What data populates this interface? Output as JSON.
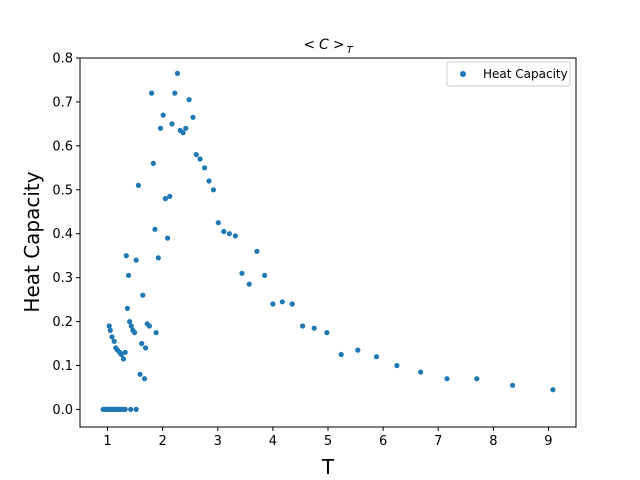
{
  "chart_data": {
    "type": "scatter",
    "title": "<C>_T",
    "xlabel": "T",
    "ylabel": "Heat Capacity",
    "xlim": [
      0.5,
      9.5
    ],
    "ylim": [
      -0.04,
      0.8
    ],
    "xticks": [
      1,
      2,
      3,
      4,
      5,
      6,
      7,
      8,
      9
    ],
    "yticks": [
      0.0,
      0.1,
      0.2,
      0.3,
      0.4,
      0.5,
      0.6,
      0.7,
      0.8
    ],
    "grid": false,
    "legend_position": "top-right",
    "series": [
      {
        "name": "Heat Capacity",
        "color": "#1f77b4",
        "points": [
          [
            0.92,
            0.0
          ],
          [
            0.95,
            0.0
          ],
          [
            0.97,
            0.0
          ],
          [
            0.99,
            0.0
          ],
          [
            1.01,
            0.0
          ],
          [
            1.03,
            0.0
          ],
          [
            1.05,
            0.0
          ],
          [
            1.07,
            0.0
          ],
          [
            1.09,
            0.0
          ],
          [
            1.11,
            0.0
          ],
          [
            1.13,
            0.0
          ],
          [
            1.15,
            0.0
          ],
          [
            1.18,
            0.0
          ],
          [
            1.21,
            0.0
          ],
          [
            1.24,
            0.0
          ],
          [
            1.28,
            0.0
          ],
          [
            1.32,
            0.0
          ],
          [
            1.42,
            0.0
          ],
          [
            1.52,
            0.0
          ],
          [
            1.03,
            0.19
          ],
          [
            1.05,
            0.18
          ],
          [
            1.08,
            0.165
          ],
          [
            1.12,
            0.155
          ],
          [
            1.15,
            0.14
          ],
          [
            1.18,
            0.135
          ],
          [
            1.22,
            0.13
          ],
          [
            1.25,
            0.125
          ],
          [
            1.29,
            0.115
          ],
          [
            1.32,
            0.13
          ],
          [
            1.34,
            0.35
          ],
          [
            1.36,
            0.23
          ],
          [
            1.38,
            0.305
          ],
          [
            1.4,
            0.2
          ],
          [
            1.43,
            0.19
          ],
          [
            1.46,
            0.18
          ],
          [
            1.49,
            0.175
          ],
          [
            1.52,
            0.34
          ],
          [
            1.56,
            0.51
          ],
          [
            1.59,
            0.08
          ],
          [
            1.62,
            0.15
          ],
          [
            1.64,
            0.26
          ],
          [
            1.67,
            0.07
          ],
          [
            1.69,
            0.14
          ],
          [
            1.72,
            0.195
          ],
          [
            1.76,
            0.19
          ],
          [
            1.8,
            0.72
          ],
          [
            1.83,
            0.56
          ],
          [
            1.86,
            0.41
          ],
          [
            1.88,
            0.175
          ],
          [
            1.92,
            0.345
          ],
          [
            1.96,
            0.64
          ],
          [
            2.01,
            0.67
          ],
          [
            2.05,
            0.48
          ],
          [
            2.09,
            0.39
          ],
          [
            2.13,
            0.485
          ],
          [
            2.17,
            0.65
          ],
          [
            2.22,
            0.72
          ],
          [
            2.27,
            0.765
          ],
          [
            2.32,
            0.635
          ],
          [
            2.37,
            0.63
          ],
          [
            2.42,
            0.64
          ],
          [
            2.48,
            0.705
          ],
          [
            2.55,
            0.665
          ],
          [
            2.61,
            0.58
          ],
          [
            2.68,
            0.57
          ],
          [
            2.76,
            0.55
          ],
          [
            2.84,
            0.52
          ],
          [
            2.92,
            0.5
          ],
          [
            3.01,
            0.425
          ],
          [
            3.11,
            0.405
          ],
          [
            3.21,
            0.4
          ],
          [
            3.32,
            0.395
          ],
          [
            3.44,
            0.31
          ],
          [
            3.57,
            0.285
          ],
          [
            3.71,
            0.36
          ],
          [
            3.85,
            0.305
          ],
          [
            4.0,
            0.24
          ],
          [
            4.17,
            0.245
          ],
          [
            4.35,
            0.24
          ],
          [
            4.54,
            0.19
          ],
          [
            4.75,
            0.185
          ],
          [
            4.98,
            0.175
          ],
          [
            5.24,
            0.125
          ],
          [
            5.54,
            0.135
          ],
          [
            5.88,
            0.12
          ],
          [
            6.25,
            0.1
          ],
          [
            6.68,
            0.085
          ],
          [
            7.16,
            0.07
          ],
          [
            7.7,
            0.07
          ],
          [
            8.35,
            0.055
          ],
          [
            9.08,
            0.045
          ]
        ]
      }
    ]
  }
}
